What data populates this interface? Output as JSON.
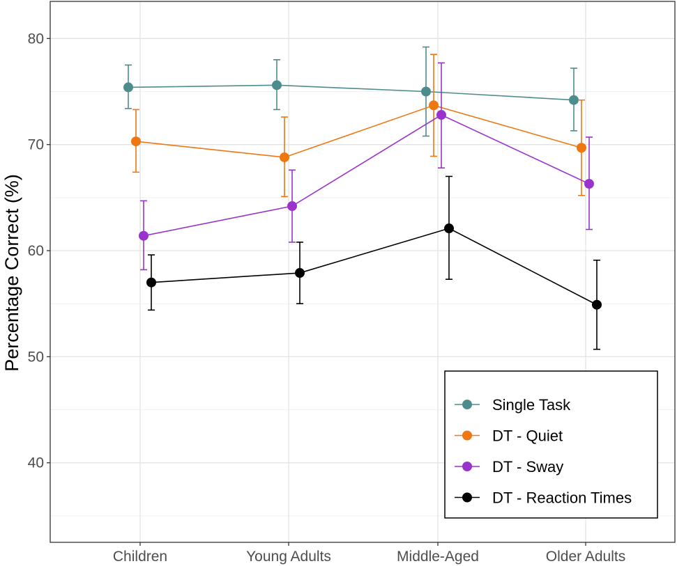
{
  "chart_data": {
    "type": "line",
    "title": "",
    "xlabel": "",
    "ylabel": "Percentage Correct (%)",
    "categories": [
      "Children",
      "Young Adults",
      "Middle-Aged",
      "Older Adults"
    ],
    "ylim": [
      32.5,
      83.5
    ],
    "yticks": [
      40,
      50,
      60,
      70,
      80
    ],
    "grid": true,
    "legend_position": "bottom-right",
    "series": [
      {
        "name": "Single Task",
        "color": "#4d8c8c",
        "values": [
          75.4,
          75.6,
          75.0,
          74.2
        ],
        "err_low": [
          73.4,
          73.3,
          70.8,
          71.3
        ],
        "err_high": [
          77.5,
          78.0,
          79.2,
          77.2
        ]
      },
      {
        "name": "DT - Quiet",
        "color": "#ee7711",
        "values": [
          70.3,
          68.8,
          73.7,
          69.7
        ],
        "err_low": [
          67.4,
          65.1,
          68.9,
          65.2
        ],
        "err_high": [
          73.3,
          72.6,
          78.5,
          74.2
        ]
      },
      {
        "name": "DT - Sway",
        "color": "#9933cc",
        "values": [
          61.4,
          64.2,
          72.8,
          66.3
        ],
        "err_low": [
          58.2,
          60.8,
          67.8,
          62.0
        ],
        "err_high": [
          64.7,
          67.6,
          77.7,
          70.7
        ]
      },
      {
        "name": "DT - Reaction Times",
        "color": "#000000",
        "values": [
          57.0,
          57.9,
          62.1,
          54.9
        ],
        "err_low": [
          54.4,
          55.0,
          57.3,
          50.7
        ],
        "err_high": [
          59.6,
          60.8,
          67.0,
          59.1
        ]
      }
    ]
  }
}
